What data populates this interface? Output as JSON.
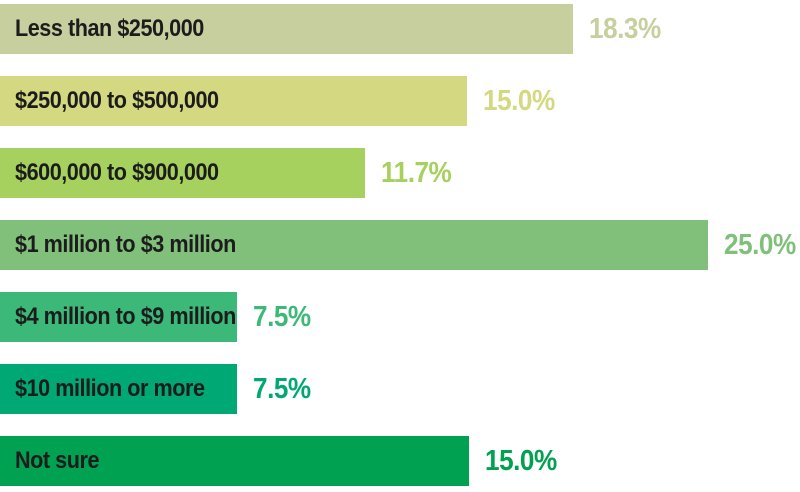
{
  "chart_data": {
    "type": "bar",
    "orientation": "horizontal",
    "title": "",
    "xlabel": "none",
    "ylabel": "none",
    "legend": "none",
    "grid": false,
    "background": "#ffffff",
    "category_text_color": "#1c1c1c",
    "categories": [
      "Less than $250,000",
      "$250,000 to $500,000",
      "$600,000 to $900,000",
      "$1 million to $3 million",
      "$4 million to $9 million",
      "$10 million or more",
      "Not sure"
    ],
    "values": [
      18.3,
      15.0,
      11.7,
      25.0,
      7.5,
      7.5,
      15.0
    ],
    "value_labels": [
      "18.3%",
      "15.0%",
      "11.7%",
      "25.0%",
      "7.5%",
      "7.5%",
      "15.0%"
    ],
    "bar_colors": [
      "#c6cf9d",
      "#d3d881",
      "#a6d15e",
      "#80c07a",
      "#3cb878",
      "#00a873",
      "#00a150"
    ],
    "bar_width_pct_of_canvas": [
      71.6,
      58.4,
      45.6,
      88.5,
      29.6,
      29.6,
      58.6
    ]
  }
}
